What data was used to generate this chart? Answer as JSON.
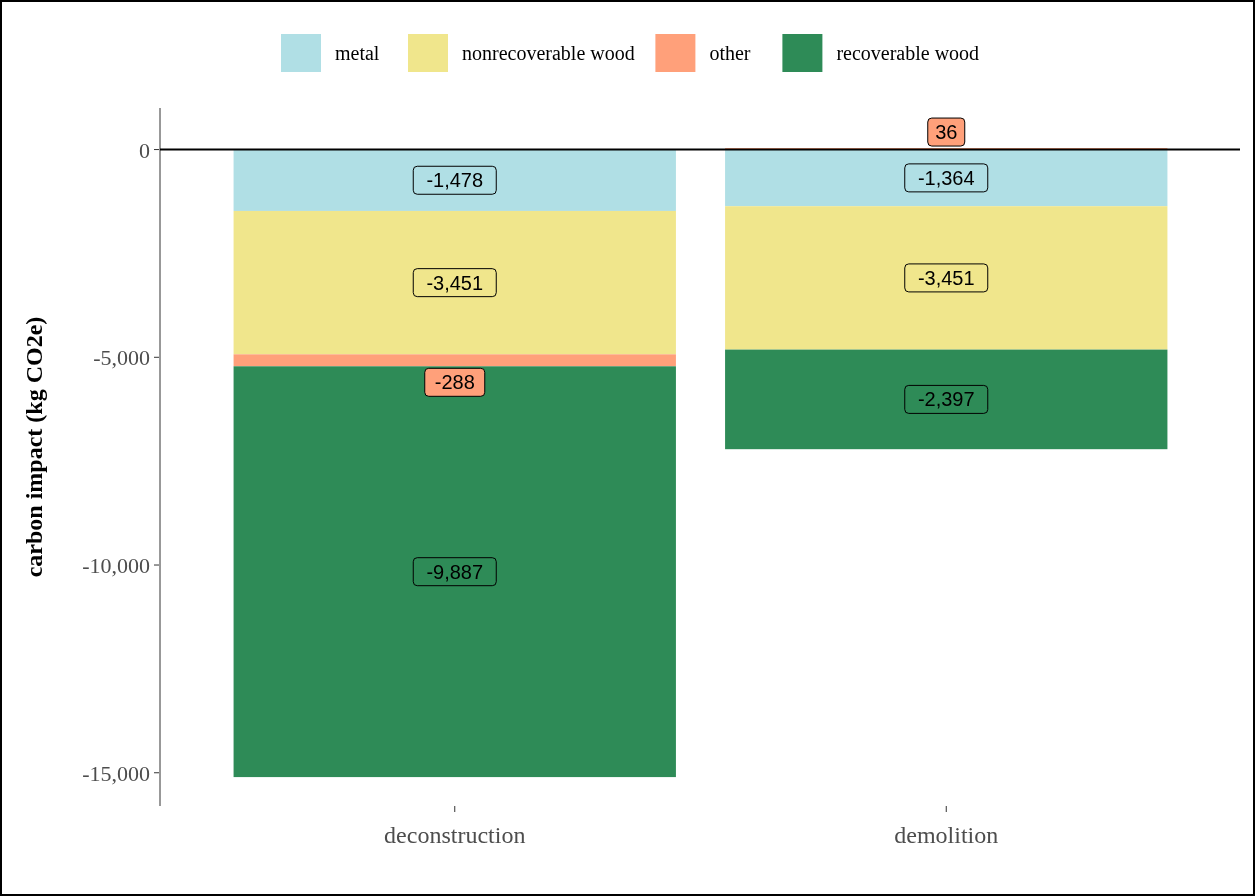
{
  "chart_data": {
    "type": "bar",
    "stacked": true,
    "ylabel": "carbon impact (kg CO2e)",
    "categories": [
      "deconstruction",
      "demolition"
    ],
    "series": [
      {
        "name": "metal",
        "color": "#b0dfe5",
        "values": [
          -1478,
          -1364
        ],
        "value_labels": [
          "-1,478",
          "-1,364"
        ]
      },
      {
        "name": "nonrecoverable wood",
        "color": "#f0e68c",
        "values": [
          -3451,
          -3451
        ],
        "value_labels": [
          "-3,451",
          "-3,451"
        ]
      },
      {
        "name": "other",
        "color": "#ffa07a",
        "values": [
          -288,
          36
        ],
        "value_labels": [
          "-288",
          "36"
        ]
      },
      {
        "name": "recoverable wood",
        "color": "#2e8b57",
        "values": [
          -9887,
          -2397
        ],
        "value_labels": [
          "-9,887",
          "-2,397"
        ]
      }
    ],
    "ylim": [
      -15800,
      1000
    ],
    "yticks": [
      {
        "value": 0,
        "label": "0"
      },
      {
        "value": -5000,
        "label": "-5,000"
      },
      {
        "value": -10000,
        "label": "-10,000"
      },
      {
        "value": -15000,
        "label": "-15,000"
      }
    ],
    "ref_lines": [
      {
        "axis": "y",
        "value": 0,
        "color": "#000000"
      }
    ],
    "legend": "top",
    "grid": false
  }
}
